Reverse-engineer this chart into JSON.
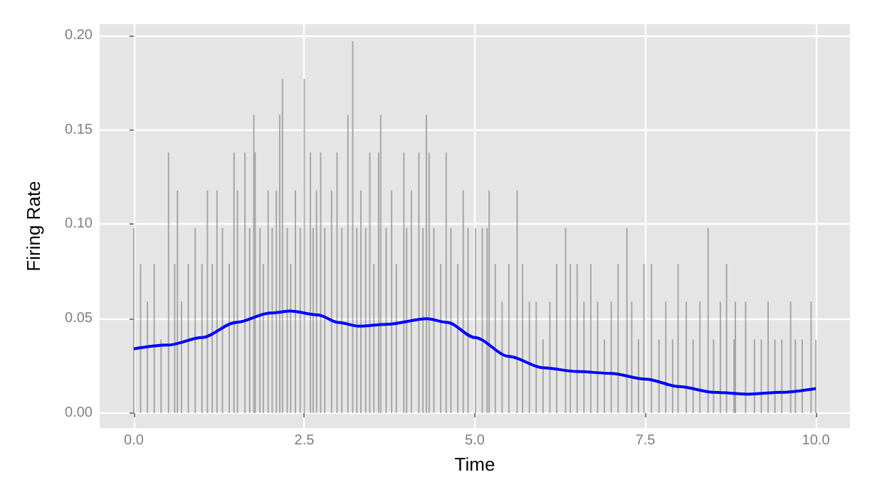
{
  "chart_data": {
    "type": "line",
    "xlabel": "Time",
    "ylabel": "Firing Rate",
    "xlim": [
      -0.5,
      10.5
    ],
    "ylim": [
      -0.008,
      0.206
    ],
    "xticks": [
      {
        "value": 0,
        "label": "0.0"
      },
      {
        "value": 2.5,
        "label": "2.5"
      },
      {
        "value": 5,
        "label": "5.0"
      },
      {
        "value": 7.5,
        "label": "7.5"
      },
      {
        "value": 10,
        "label": "10.0"
      }
    ],
    "yticks": [
      {
        "value": 0,
        "label": "0.00"
      },
      {
        "value": 0.05,
        "label": "0.05"
      },
      {
        "value": 0.1,
        "label": "0.10"
      },
      {
        "value": 0.15,
        "label": "0.15"
      },
      {
        "value": 0.2,
        "label": "0.20"
      }
    ],
    "grid": true,
    "marker": "none",
    "line_style": "solid",
    "series": [
      {
        "type": "bar",
        "color": "#8c8c8c",
        "x": [
          0.0,
          0.1,
          0.2,
          0.3,
          0.4,
          0.51,
          0.6,
          0.64,
          0.7,
          0.8,
          0.9,
          1.0,
          1.08,
          1.15,
          1.22,
          1.3,
          1.4,
          1.47,
          1.52,
          1.63,
          1.7,
          1.76,
          1.78,
          1.85,
          1.9,
          1.97,
          2.03,
          2.09,
          2.14,
          2.18,
          2.25,
          2.3,
          2.37,
          2.44,
          2.5,
          2.59,
          2.63,
          2.68,
          2.74,
          2.8,
          2.9,
          2.98,
          3.05,
          3.14,
          3.21,
          3.27,
          3.33,
          3.4,
          3.46,
          3.52,
          3.59,
          3.62,
          3.7,
          3.78,
          3.85,
          3.96,
          4.0,
          4.07,
          4.18,
          4.24,
          4.29,
          4.33,
          4.4,
          4.5,
          4.58,
          4.65,
          4.75,
          4.83,
          4.9,
          5.01,
          5.11,
          5.18,
          5.21,
          5.3,
          5.4,
          5.5,
          5.62,
          5.7,
          5.8,
          5.9,
          6.0,
          6.1,
          6.2,
          6.33,
          6.4,
          6.5,
          6.6,
          6.7,
          6.8,
          6.9,
          7.0,
          7.1,
          7.23,
          7.3,
          7.4,
          7.48,
          7.59,
          7.7,
          7.8,
          7.9,
          7.98,
          8.1,
          8.2,
          8.3,
          8.42,
          8.5,
          8.6,
          8.69,
          8.8,
          8.82,
          8.97,
          9.1,
          9.2,
          9.3,
          9.4,
          9.5,
          9.63,
          9.7,
          9.8,
          9.93,
          10.0
        ],
        "values": [
          0.098,
          0.079,
          0.059,
          0.079,
          0.039,
          0.138,
          0.079,
          0.118,
          0.059,
          0.079,
          0.098,
          0.079,
          0.118,
          0.079,
          0.118,
          0.098,
          0.079,
          0.138,
          0.118,
          0.138,
          0.098,
          0.158,
          0.138,
          0.098,
          0.079,
          0.118,
          0.098,
          0.118,
          0.158,
          0.177,
          0.098,
          0.079,
          0.118,
          0.098,
          0.177,
          0.138,
          0.098,
          0.118,
          0.138,
          0.098,
          0.118,
          0.138,
          0.098,
          0.158,
          0.197,
          0.098,
          0.118,
          0.098,
          0.138,
          0.079,
          0.138,
          0.158,
          0.098,
          0.118,
          0.079,
          0.138,
          0.098,
          0.118,
          0.138,
          0.098,
          0.158,
          0.138,
          0.098,
          0.079,
          0.138,
          0.098,
          0.079,
          0.118,
          0.098,
          0.098,
          0.098,
          0.098,
          0.118,
          0.079,
          0.059,
          0.079,
          0.118,
          0.079,
          0.059,
          0.059,
          0.039,
          0.059,
          0.079,
          0.098,
          0.079,
          0.079,
          0.059,
          0.079,
          0.059,
          0.039,
          0.059,
          0.079,
          0.098,
          0.059,
          0.039,
          0.079,
          0.079,
          0.039,
          0.059,
          0.039,
          0.079,
          0.059,
          0.039,
          0.059,
          0.098,
          0.039,
          0.059,
          0.079,
          0.039,
          0.059,
          0.059,
          0.039,
          0.039,
          0.059,
          0.039,
          0.039,
          0.059,
          0.039,
          0.039,
          0.059,
          0.039
        ]
      },
      {
        "color": "#0000ff",
        "x": [
          0,
          0.5,
          1,
          1.5,
          2,
          2.3,
          2.7,
          3,
          3.3,
          3.7,
          4.3,
          4.6,
          5,
          5.5,
          6,
          6.5,
          7,
          7.5,
          8,
          8.5,
          9,
          9.5,
          10
        ],
        "values": [
          0.034,
          0.036,
          0.04,
          0.048,
          0.053,
          0.054,
          0.052,
          0.048,
          0.046,
          0.047,
          0.05,
          0.048,
          0.04,
          0.03,
          0.024,
          0.022,
          0.021,
          0.018,
          0.014,
          0.011,
          0.01,
          0.011,
          0.013
        ]
      }
    ]
  }
}
